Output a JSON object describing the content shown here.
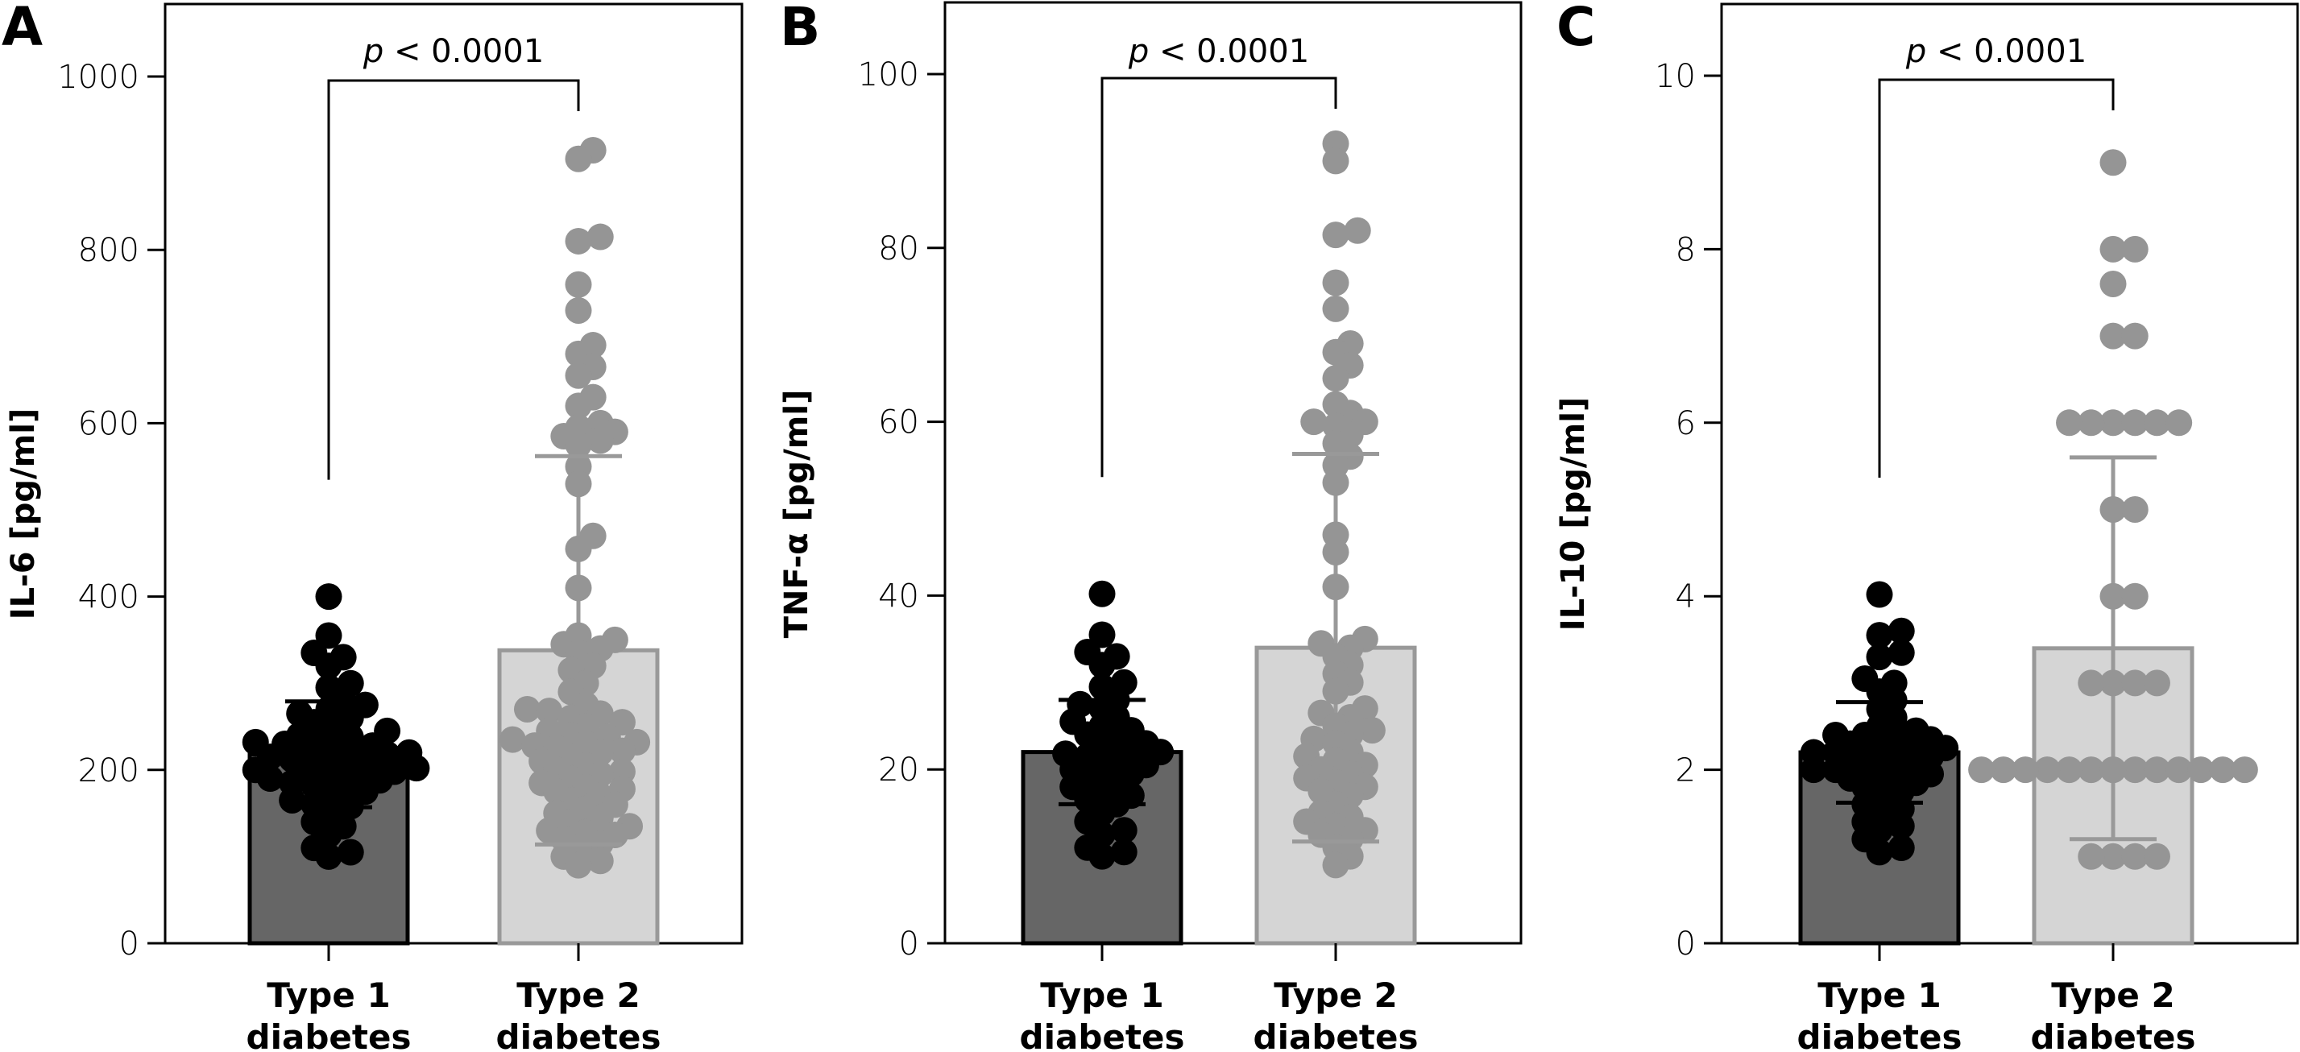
{
  "figure": {
    "group_labels": [
      [
        "Type 1",
        "diabetes"
      ],
      [
        "Type 2",
        "diabetes"
      ]
    ],
    "colors": {
      "type1_bar_fill": "#666666",
      "type1_bar_stroke": "#000000",
      "type1_dot": "#000000",
      "type2_bar_fill": "#d5d5d5",
      "type2_bar_stroke": "#999999",
      "type2_dot": "#959595",
      "axis": "#000000"
    }
  },
  "chart_data": [
    {
      "panel": "A",
      "type": "bar",
      "title": "",
      "xlabel": "",
      "ylabel": "IL-6 [pg/ml]",
      "ylim": [
        0,
        1000
      ],
      "yticks": [
        0,
        200,
        400,
        600,
        800,
        1000
      ],
      "grid": false,
      "categories": [
        "Type 1 diabetes",
        "Type 2 diabetes"
      ],
      "annotation": {
        "p_symbol": "p",
        "p_text": "< 0.0001"
      },
      "series": [
        {
          "name": "Type 1 diabetes",
          "mean": 218,
          "sd": 61,
          "points": [
            400,
            355,
            335,
            330,
            320,
            300,
            295,
            280,
            275,
            270,
            265,
            260,
            255,
            250,
            245,
            240,
            238,
            235,
            232,
            230,
            228,
            225,
            222,
            220,
            218,
            218,
            215,
            212,
            210,
            208,
            205,
            202,
            200,
            200,
            198,
            195,
            192,
            190,
            188,
            185,
            182,
            180,
            175,
            170,
            165,
            160,
            158,
            150,
            140,
            135,
            125,
            110,
            105,
            100
          ]
        },
        {
          "name": "Type 2 diabetes",
          "mean": 338,
          "sd": 224,
          "points": [
            915,
            905,
            815,
            810,
            760,
            730,
            690,
            680,
            665,
            655,
            630,
            620,
            600,
            595,
            590,
            585,
            580,
            575,
            550,
            530,
            470,
            455,
            410,
            355,
            350,
            345,
            340,
            335,
            320,
            315,
            300,
            290,
            275,
            270,
            268,
            265,
            260,
            255,
            250,
            245,
            240,
            238,
            235,
            232,
            230,
            228,
            225,
            222,
            220,
            215,
            210,
            205,
            200,
            198,
            195,
            190,
            185,
            180,
            178,
            175,
            170,
            165,
            160,
            155,
            150,
            145,
            140,
            135,
            130,
            128,
            125,
            120,
            115,
            110,
            100,
            95,
            90
          ]
        }
      ]
    },
    {
      "panel": "B",
      "type": "bar",
      "title": "",
      "xlabel": "",
      "ylabel": "TNF-α [pg/ml]",
      "ylim": [
        0,
        100
      ],
      "yticks": [
        0,
        20,
        40,
        60,
        80,
        100
      ],
      "grid": false,
      "categories": [
        "Type 1 diabetes",
        "Type 2 diabetes"
      ],
      "annotation": {
        "p_symbol": "p",
        "p_text": "< 0.0001"
      },
      "series": [
        {
          "name": "Type 1 diabetes",
          "mean": 22,
          "sd": 6,
          "points": [
            40.2,
            35.5,
            33.5,
            33,
            32,
            30,
            29.5,
            28,
            27.5,
            27,
            26,
            25.5,
            25,
            24.5,
            24,
            23.5,
            23,
            22.5,
            22,
            22,
            21.8,
            21.5,
            21,
            20.5,
            20,
            20,
            19.5,
            19,
            18.5,
            18,
            17.5,
            17,
            16.5,
            16,
            15,
            14,
            13,
            12.5,
            11,
            10.5,
            10
          ]
        },
        {
          "name": "Type 2 diabetes",
          "mean": 34,
          "sd": 22.3,
          "points": [
            92,
            90,
            82,
            81.5,
            76,
            73,
            69,
            68,
            66.5,
            65,
            62,
            61,
            60,
            60,
            59.5,
            58.5,
            57.5,
            56,
            55,
            53,
            47,
            45,
            41,
            35,
            34.5,
            34,
            33,
            32,
            31,
            30,
            29,
            27,
            26.5,
            26,
            25,
            24.5,
            24,
            23.5,
            23,
            22,
            21.5,
            21,
            20.5,
            20,
            19.5,
            19,
            18.5,
            18,
            17.5,
            17,
            16,
            15,
            14.5,
            14,
            13.5,
            13,
            12.5,
            12,
            11,
            10,
            9
          ]
        }
      ]
    },
    {
      "panel": "C",
      "type": "bar",
      "title": "",
      "xlabel": "",
      "ylabel": "IL-10 [pg/ml]",
      "ylim": [
        0,
        10
      ],
      "yticks": [
        0,
        2,
        4,
        6,
        8,
        10
      ],
      "grid": false,
      "categories": [
        "Type 1 diabetes",
        "Type 2 diabetes"
      ],
      "annotation": {
        "p_symbol": "p",
        "p_text": "< 0.0001"
      },
      "series": [
        {
          "name": "Type 1 diabetes",
          "mean": 2.2,
          "sd": 0.58,
          "points": [
            4.02,
            3.6,
            3.55,
            3.35,
            3.3,
            3.05,
            3.0,
            2.9,
            2.8,
            2.7,
            2.6,
            2.5,
            2.45,
            2.4,
            2.4,
            2.35,
            2.35,
            2.3,
            2.3,
            2.25,
            2.25,
            2.2,
            2.2,
            2.2,
            2.15,
            2.15,
            2.1,
            2.1,
            2.05,
            2.0,
            2.0,
            2.0,
            1.95,
            1.95,
            1.9,
            1.9,
            1.85,
            1.8,
            1.75,
            1.7,
            1.6,
            1.55,
            1.5,
            1.4,
            1.35,
            1.3,
            1.2,
            1.1,
            1.05
          ]
        },
        {
          "name": "Type 2 diabetes",
          "mean": 3.4,
          "sd": 2.2,
          "points": [
            9,
            8,
            8,
            7.6,
            7,
            7,
            6,
            6,
            6,
            6,
            6,
            6,
            5,
            5,
            4,
            4,
            3,
            3,
            3,
            3,
            2,
            2,
            2,
            2,
            2,
            2,
            2,
            2,
            2,
            2,
            2,
            2,
            2,
            2,
            1,
            1,
            1,
            1
          ]
        }
      ]
    }
  ]
}
